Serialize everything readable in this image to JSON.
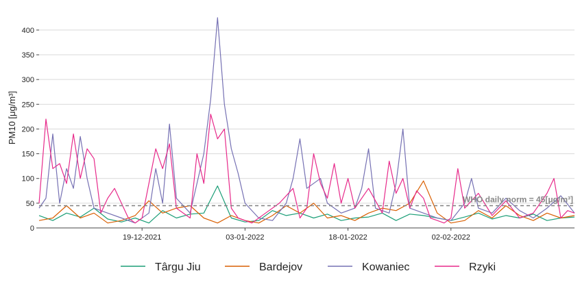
{
  "chart_data": {
    "type": "line",
    "ylabel": "PM10 [μg/m³]",
    "ylim": [
      0,
      440
    ],
    "yticks": [
      0,
      50,
      100,
      150,
      200,
      250,
      300,
      350,
      400
    ],
    "xrange": [
      "2021-12-04",
      "2022-02-20"
    ],
    "xticks": [
      {
        "date": "2021-12-19",
        "label": "19-12-2021"
      },
      {
        "date": "2022-01-03",
        "label": "03-01-2022"
      },
      {
        "date": "2022-01-18",
        "label": "18-01-2022"
      },
      {
        "date": "2022-02-02",
        "label": "02-02-2022"
      }
    ],
    "grid": "horizontal",
    "legend_position": "bottom",
    "reference_line": {
      "value": 45,
      "label": "WHO daily norm = 45[μg/m³]",
      "color": "#808080"
    },
    "series": [
      {
        "name": "Târgu Jiu",
        "color": "#1b9e77",
        "points": [
          [
            "2021-12-04",
            25
          ],
          [
            "2021-12-06",
            15
          ],
          [
            "2021-12-08",
            30
          ],
          [
            "2021-12-10",
            22
          ],
          [
            "2021-12-12",
            40
          ],
          [
            "2021-12-14",
            18
          ],
          [
            "2021-12-16",
            12
          ],
          [
            "2021-12-18",
            20
          ],
          [
            "2021-12-20",
            10
          ],
          [
            "2021-12-22",
            35
          ],
          [
            "2021-12-24",
            20
          ],
          [
            "2021-12-26",
            28
          ],
          [
            "2021-12-28",
            30
          ],
          [
            "2021-12-30",
            85
          ],
          [
            "2022-01-01",
            20
          ],
          [
            "2022-01-03",
            12
          ],
          [
            "2022-01-05",
            15
          ],
          [
            "2022-01-07",
            35
          ],
          [
            "2022-01-09",
            25
          ],
          [
            "2022-01-11",
            30
          ],
          [
            "2022-01-13",
            20
          ],
          [
            "2022-01-15",
            28
          ],
          [
            "2022-01-17",
            15
          ],
          [
            "2022-01-19",
            20
          ],
          [
            "2022-01-21",
            22
          ],
          [
            "2022-01-23",
            30
          ],
          [
            "2022-01-25",
            15
          ],
          [
            "2022-01-27",
            28
          ],
          [
            "2022-01-29",
            25
          ],
          [
            "2022-01-31",
            20
          ],
          [
            "2022-02-02",
            15
          ],
          [
            "2022-02-04",
            22
          ],
          [
            "2022-02-06",
            30
          ],
          [
            "2022-02-08",
            18
          ],
          [
            "2022-02-10",
            25
          ],
          [
            "2022-02-12",
            20
          ],
          [
            "2022-02-14",
            28
          ],
          [
            "2022-02-16",
            15
          ],
          [
            "2022-02-18",
            20
          ],
          [
            "2022-02-20",
            22
          ]
        ]
      },
      {
        "name": "Bardejov",
        "color": "#d95f02",
        "points": [
          [
            "2021-12-04",
            15
          ],
          [
            "2021-12-06",
            20
          ],
          [
            "2021-12-08",
            45
          ],
          [
            "2021-12-10",
            20
          ],
          [
            "2021-12-12",
            30
          ],
          [
            "2021-12-14",
            10
          ],
          [
            "2021-12-16",
            15
          ],
          [
            "2021-12-18",
            25
          ],
          [
            "2021-12-20",
            55
          ],
          [
            "2021-12-22",
            30
          ],
          [
            "2021-12-24",
            40
          ],
          [
            "2021-12-26",
            45
          ],
          [
            "2021-12-28",
            20
          ],
          [
            "2021-12-30",
            10
          ],
          [
            "2022-01-01",
            25
          ],
          [
            "2022-01-03",
            15
          ],
          [
            "2022-01-05",
            10
          ],
          [
            "2022-01-07",
            25
          ],
          [
            "2022-01-09",
            45
          ],
          [
            "2022-01-11",
            30
          ],
          [
            "2022-01-13",
            50
          ],
          [
            "2022-01-15",
            20
          ],
          [
            "2022-01-17",
            25
          ],
          [
            "2022-01-19",
            15
          ],
          [
            "2022-01-21",
            30
          ],
          [
            "2022-01-23",
            40
          ],
          [
            "2022-01-25",
            35
          ],
          [
            "2022-01-27",
            50
          ],
          [
            "2022-01-29",
            95
          ],
          [
            "2022-01-31",
            30
          ],
          [
            "2022-02-02",
            10
          ],
          [
            "2022-02-04",
            15
          ],
          [
            "2022-02-06",
            35
          ],
          [
            "2022-02-08",
            20
          ],
          [
            "2022-02-10",
            45
          ],
          [
            "2022-02-12",
            25
          ],
          [
            "2022-02-14",
            15
          ],
          [
            "2022-02-16",
            30
          ],
          [
            "2022-02-18",
            20
          ],
          [
            "2022-02-20",
            25
          ]
        ]
      },
      {
        "name": "Kowaniec",
        "color": "#7570b3",
        "points": [
          [
            "2021-12-04",
            40
          ],
          [
            "2021-12-05",
            60
          ],
          [
            "2021-12-06",
            190
          ],
          [
            "2021-12-07",
            50
          ],
          [
            "2021-12-08",
            120
          ],
          [
            "2021-12-09",
            80
          ],
          [
            "2021-12-10",
            185
          ],
          [
            "2021-12-11",
            100
          ],
          [
            "2021-12-12",
            40
          ],
          [
            "2021-12-14",
            30
          ],
          [
            "2021-12-16",
            20
          ],
          [
            "2021-12-18",
            10
          ],
          [
            "2021-12-20",
            30
          ],
          [
            "2021-12-21",
            120
          ],
          [
            "2021-12-22",
            50
          ],
          [
            "2021-12-23",
            210
          ],
          [
            "2021-12-24",
            60
          ],
          [
            "2021-12-26",
            30
          ],
          [
            "2021-12-28",
            150
          ],
          [
            "2021-12-29",
            260
          ],
          [
            "2021-12-30",
            425
          ],
          [
            "2021-12-31",
            250
          ],
          [
            "2022-01-01",
            160
          ],
          [
            "2022-01-02",
            110
          ],
          [
            "2022-01-03",
            50
          ],
          [
            "2022-01-05",
            20
          ],
          [
            "2022-01-07",
            15
          ],
          [
            "2022-01-09",
            50
          ],
          [
            "2022-01-10",
            100
          ],
          [
            "2022-01-11",
            180
          ],
          [
            "2022-01-12",
            80
          ],
          [
            "2022-01-14",
            100
          ],
          [
            "2022-01-15",
            50
          ],
          [
            "2022-01-17",
            30
          ],
          [
            "2022-01-19",
            40
          ],
          [
            "2022-01-20",
            80
          ],
          [
            "2022-01-21",
            160
          ],
          [
            "2022-01-22",
            40
          ],
          [
            "2022-01-24",
            30
          ],
          [
            "2022-01-25",
            90
          ],
          [
            "2022-01-26",
            200
          ],
          [
            "2022-01-27",
            40
          ],
          [
            "2022-01-29",
            30
          ],
          [
            "2022-01-31",
            20
          ],
          [
            "2022-02-02",
            15
          ],
          [
            "2022-02-04",
            50
          ],
          [
            "2022-02-05",
            100
          ],
          [
            "2022-02-06",
            40
          ],
          [
            "2022-02-08",
            30
          ],
          [
            "2022-02-10",
            60
          ],
          [
            "2022-02-12",
            35
          ],
          [
            "2022-02-14",
            20
          ],
          [
            "2022-02-16",
            40
          ],
          [
            "2022-02-18",
            65
          ],
          [
            "2022-02-20",
            30
          ]
        ]
      },
      {
        "name": "Rzyki",
        "color": "#e7298a",
        "points": [
          [
            "2021-12-04",
            50
          ],
          [
            "2021-12-05",
            220
          ],
          [
            "2021-12-06",
            120
          ],
          [
            "2021-12-07",
            130
          ],
          [
            "2021-12-08",
            90
          ],
          [
            "2021-12-09",
            190
          ],
          [
            "2021-12-10",
            100
          ],
          [
            "2021-12-11",
            160
          ],
          [
            "2021-12-12",
            140
          ],
          [
            "2021-12-13",
            30
          ],
          [
            "2021-12-14",
            60
          ],
          [
            "2021-12-15",
            80
          ],
          [
            "2021-12-17",
            20
          ],
          [
            "2021-12-18",
            10
          ],
          [
            "2021-12-19",
            20
          ],
          [
            "2021-12-21",
            160
          ],
          [
            "2021-12-22",
            120
          ],
          [
            "2021-12-23",
            170
          ],
          [
            "2021-12-24",
            40
          ],
          [
            "2021-12-26",
            20
          ],
          [
            "2021-12-27",
            150
          ],
          [
            "2021-12-28",
            90
          ],
          [
            "2021-12-29",
            230
          ],
          [
            "2021-12-30",
            180
          ],
          [
            "2021-12-31",
            200
          ],
          [
            "2022-01-01",
            40
          ],
          [
            "2022-01-02",
            20
          ],
          [
            "2022-01-04",
            10
          ],
          [
            "2022-01-06",
            30
          ],
          [
            "2022-01-08",
            50
          ],
          [
            "2022-01-10",
            80
          ],
          [
            "2022-01-11",
            20
          ],
          [
            "2022-01-12",
            40
          ],
          [
            "2022-01-13",
            150
          ],
          [
            "2022-01-14",
            90
          ],
          [
            "2022-01-15",
            60
          ],
          [
            "2022-01-16",
            130
          ],
          [
            "2022-01-17",
            50
          ],
          [
            "2022-01-18",
            100
          ],
          [
            "2022-01-19",
            40
          ],
          [
            "2022-01-21",
            80
          ],
          [
            "2022-01-23",
            30
          ],
          [
            "2022-01-24",
            135
          ],
          [
            "2022-01-25",
            70
          ],
          [
            "2022-01-26",
            100
          ],
          [
            "2022-01-27",
            40
          ],
          [
            "2022-01-28",
            75
          ],
          [
            "2022-01-29",
            60
          ],
          [
            "2022-01-30",
            20
          ],
          [
            "2022-02-01",
            10
          ],
          [
            "2022-02-02",
            20
          ],
          [
            "2022-02-03",
            120
          ],
          [
            "2022-02-04",
            40
          ],
          [
            "2022-02-06",
            70
          ],
          [
            "2022-02-08",
            25
          ],
          [
            "2022-02-10",
            55
          ],
          [
            "2022-02-12",
            20
          ],
          [
            "2022-02-14",
            30
          ],
          [
            "2022-02-16",
            70
          ],
          [
            "2022-02-17",
            100
          ],
          [
            "2022-02-18",
            20
          ],
          [
            "2022-02-19",
            35
          ],
          [
            "2022-02-20",
            30
          ]
        ]
      }
    ]
  }
}
